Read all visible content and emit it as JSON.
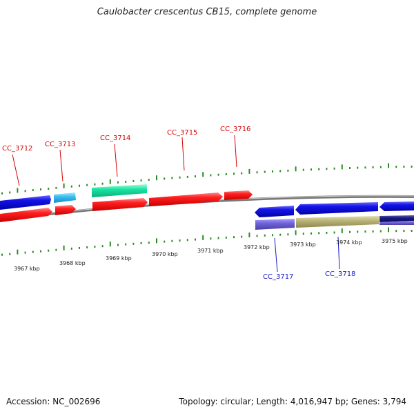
{
  "title": "Caulobacter crescentus CB15, complete genome",
  "accession_text": "Accession: NC_002696",
  "stats_text": "Topology: circular; Length: 4,016,947 bp; Genes: 3,794",
  "colors": {
    "backbone": "#8a8a8a",
    "tick": "#2a8a22",
    "plus_label": "#d80000",
    "minus_label": "#1818c8"
  },
  "kbp_labels": [
    "3967 kbp",
    "3968 kbp",
    "3969 kbp",
    "3970 kbp",
    "3971 kbp",
    "3972 kbp",
    "3973 kbp",
    "3974 kbp",
    "3975 kbp"
  ],
  "gene_labels": [
    {
      "text": "CC_3712",
      "strand": "plus"
    },
    {
      "text": "CC_3713",
      "strand": "plus"
    },
    {
      "text": "CC_3714",
      "strand": "plus"
    },
    {
      "text": "CC_3715",
      "strand": "plus"
    },
    {
      "text": "CC_3716",
      "strand": "plus"
    },
    {
      "text": "CC_3717",
      "strand": "minus"
    },
    {
      "text": "CC_3718",
      "strand": "minus"
    }
  ]
}
